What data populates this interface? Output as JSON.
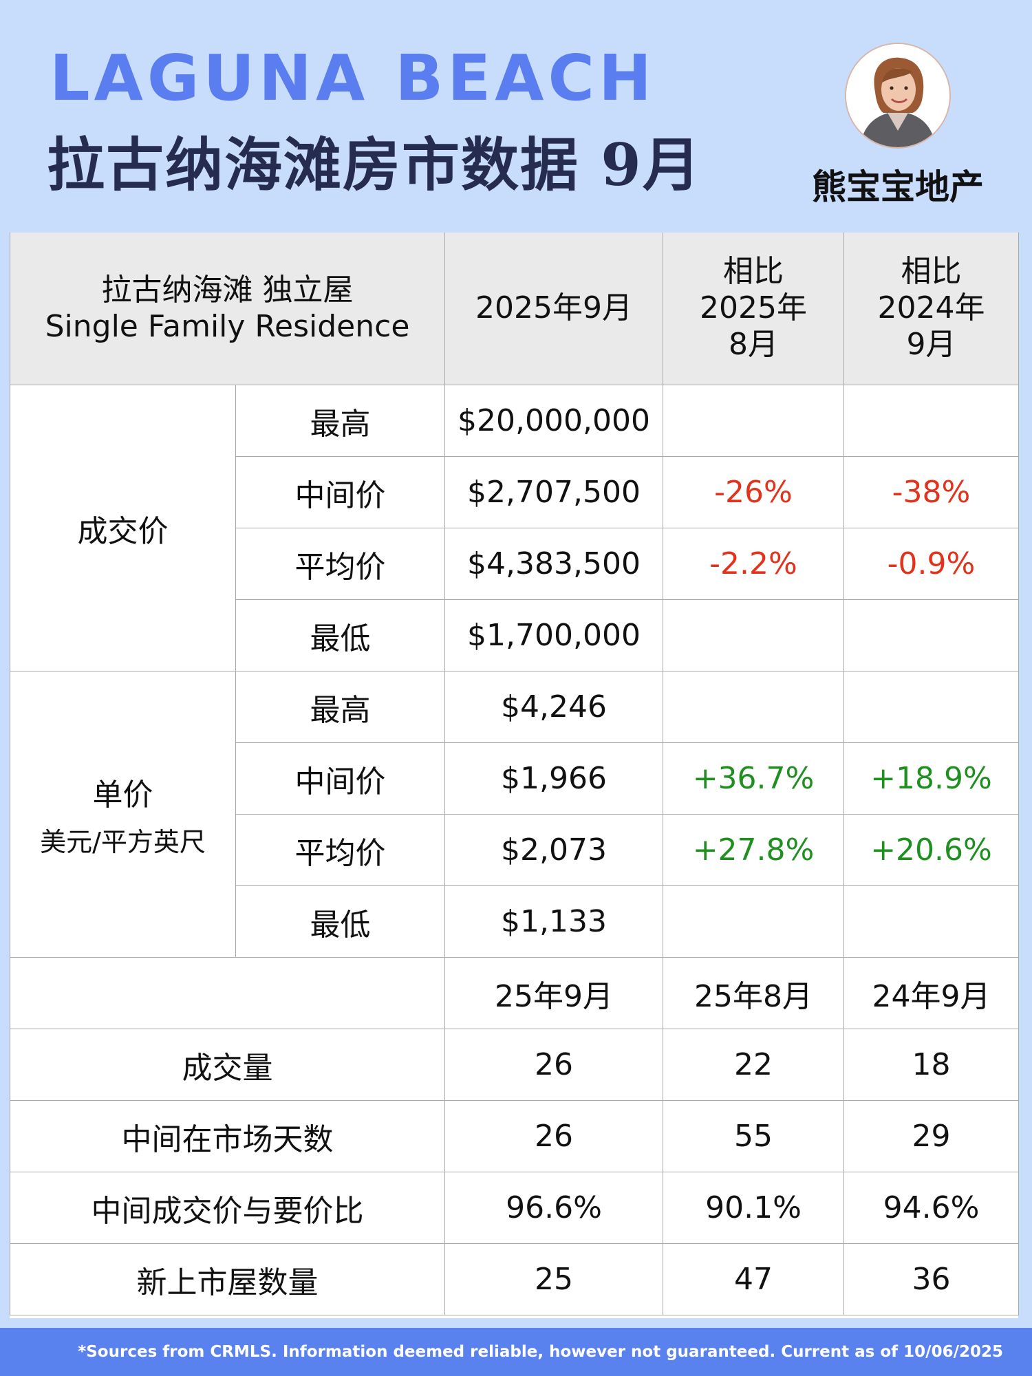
{
  "header": {
    "title_en": "LAGUNA BEACH",
    "title_cn": "拉古纳海滩房市数据 9月",
    "brand": "熊宝宝地产"
  },
  "table": {
    "header": {
      "label_cn": "拉古纳海滩  独立屋",
      "label_en": "Single Family Residence",
      "col1": "2025年9月",
      "col2": [
        "相比",
        "2025年",
        "8月"
      ],
      "col3": [
        "相比",
        "2024年",
        "9月"
      ]
    },
    "price": {
      "category": "成交价",
      "rows": [
        {
          "label": "最高",
          "value": "$20,000,000",
          "mom": "",
          "yoy": ""
        },
        {
          "label": "中间价",
          "value": "$2,707,500",
          "mom": "-26%",
          "yoy": "-38%"
        },
        {
          "label": "平均价",
          "value": "$4,383,500",
          "mom": "-2.2%",
          "yoy": "-0.9%"
        },
        {
          "label": "最低",
          "value": "$1,700,000",
          "mom": "",
          "yoy": ""
        }
      ]
    },
    "unit": {
      "category": "单价",
      "category_sub": "美元/平方英尺",
      "rows": [
        {
          "label": "最高",
          "value": "$4,246",
          "mom": "",
          "yoy": ""
        },
        {
          "label": "中间价",
          "value": "$1,966",
          "mom": "+36.7%",
          "yoy": "+18.9%"
        },
        {
          "label": "平均价",
          "value": "$2,073",
          "mom": "+27.8%",
          "yoy": "+20.6%"
        },
        {
          "label": "最低",
          "value": "$1,133",
          "mom": "",
          "yoy": ""
        }
      ]
    },
    "stats": {
      "columns": [
        "25年9月",
        "25年8月",
        "24年9月"
      ],
      "rows": [
        {
          "label": "成交量",
          "values": [
            "26",
            "22",
            "18"
          ]
        },
        {
          "label": "中间在市场天数",
          "values": [
            "26",
            "55",
            "29"
          ]
        },
        {
          "label": "中间成交价与要价比",
          "values": [
            "96.6%",
            "90.1%",
            "94.6%"
          ]
        },
        {
          "label": "新上市屋数量",
          "values": [
            "25",
            "47",
            "36"
          ]
        }
      ]
    }
  },
  "colors": {
    "background": "#c8dcfb",
    "title_en": "#5a7ef0",
    "negative": "#e2321b",
    "positive": "#1f8f1f",
    "footer": "#5a82ee"
  },
  "footer": {
    "note": "*Sources from CRMLS. Information deemed reliable, however not guaranteed. Current as of 10/06/2025"
  }
}
